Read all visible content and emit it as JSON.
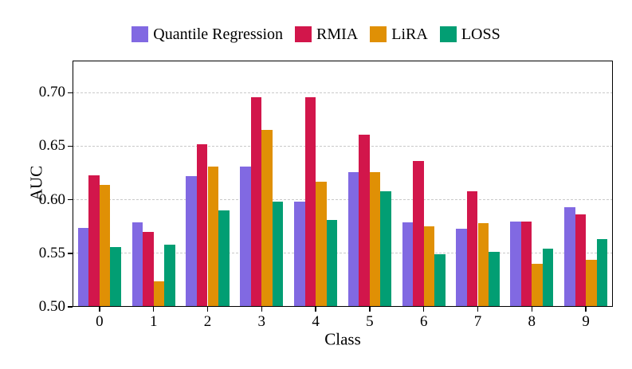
{
  "chart_data": {
    "type": "bar",
    "categories": [
      "0",
      "1",
      "2",
      "3",
      "4",
      "5",
      "6",
      "7",
      "8",
      "9"
    ],
    "series": [
      {
        "name": "Quantile Regression",
        "color": "#8169e2",
        "values": [
          0.574,
          0.579,
          0.622,
          0.631,
          0.598,
          0.626,
          0.579,
          0.573,
          0.58,
          0.593
        ]
      },
      {
        "name": "RMIA",
        "color": "#d2164b",
        "values": [
          0.623,
          0.57,
          0.652,
          0.696,
          0.696,
          0.661,
          0.636,
          0.608,
          0.58,
          0.586
        ]
      },
      {
        "name": "LiRA",
        "color": "#e09005",
        "values": [
          0.614,
          0.524,
          0.631,
          0.665,
          0.617,
          0.626,
          0.575,
          0.578,
          0.54,
          0.544
        ]
      },
      {
        "name": "LOSS",
        "color": "#029e73",
        "values": [
          0.556,
          0.558,
          0.59,
          0.598,
          0.581,
          0.608,
          0.549,
          0.551,
          0.554,
          0.563
        ]
      }
    ],
    "xlabel": "Class",
    "ylabel": "AUC",
    "ylim": [
      0.5,
      0.73
    ],
    "yticks": [
      0.5,
      0.55,
      0.6,
      0.65,
      0.7
    ],
    "ytick_format": "2dp",
    "grid": {
      "axis": "y",
      "style": "dashed",
      "color": "#c9c9c9"
    },
    "legend_position": "top-center",
    "bar_group_fill": 0.8,
    "frame": "full-box",
    "background": "#ffffff",
    "text_color": "#000000"
  }
}
